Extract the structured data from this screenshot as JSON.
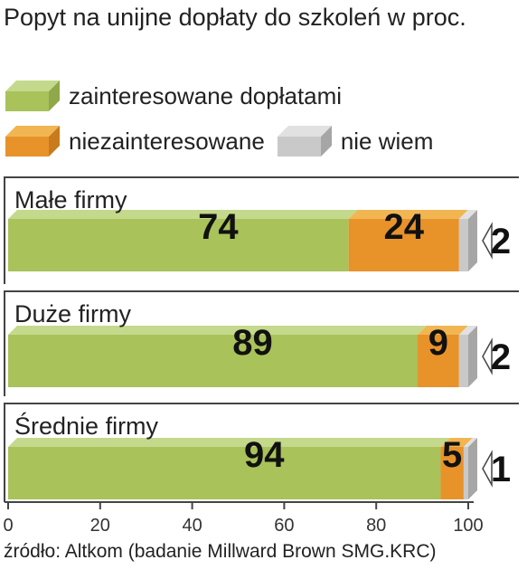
{
  "chart_data": {
    "type": "bar",
    "orientation": "horizontal",
    "stacked": true,
    "title": "Popyt na unijne dopłaty do szkoleń w proc.",
    "categories": [
      "Małe firmy",
      "Duże firmy",
      "Średnie firmy"
    ],
    "series": [
      {
        "name": "zainteresowane dopłatami",
        "values": [
          74,
          89,
          94
        ],
        "color": "#a9c25a",
        "top_color": "#c4d98b",
        "side_color": "#8fa84a"
      },
      {
        "name": "niezainteresowane",
        "values": [
          24,
          9,
          5
        ],
        "color": "#e8922a",
        "top_color": "#f1b652",
        "side_color": "#c97a1c"
      },
      {
        "name": "nie wiem",
        "values": [
          2,
          2,
          1
        ],
        "color": "#c9c9c9",
        "top_color": "#e1e1e1",
        "side_color": "#a6a6a6"
      }
    ],
    "xlim": [
      0,
      100
    ],
    "xticks": [
      0,
      20,
      40,
      60,
      80,
      100
    ],
    "grid": false,
    "legend": "top"
  },
  "source": "źródło: Altkom (badanie Millward Brown SMG.KRC)"
}
